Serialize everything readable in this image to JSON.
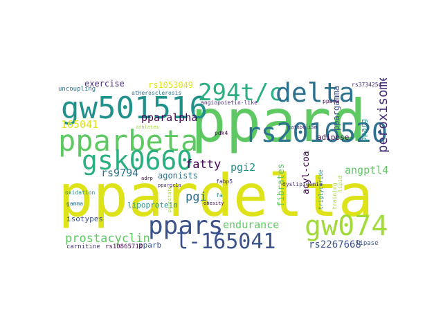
{
  "palette": {
    "yellow": "#dde318",
    "yellow_green": "#a2da37",
    "green": "#5ec962",
    "teal_green": "#2ab07f",
    "teal": "#21918c",
    "blue_teal": "#2c728e",
    "blue": "#3b528b",
    "indigo": "#472d7b",
    "purple": "#440154"
  },
  "words": {
    "ppardelta": "ppardelta",
    "ppard": "ppard",
    "gw501516": "gw501516",
    "pparbeta": "pparbeta",
    "294t_c": "294t/c",
    "delta": "delta",
    "rs2016520": "rs2016520",
    "gsk0660": "gsk0660",
    "gw0742": "gw0742",
    "ppars": "ppars",
    "l_165041": "l-165041",
    "peroxisome": "peroxisome",
    "fatty": "fatty",
    "prostacyclin": "prostacyclin",
    "endurance": "endurance",
    "angptl4": "angptl4",
    "rs2267668": "rs2267668",
    "rs9794": "rs9794",
    "pparalpha": "pparalpha",
    "165041": "165041",
    "pgi2": "pgi2",
    "pgi": "pgi",
    "agonists": "agonists",
    "exercise": "exercise",
    "rs1053049": "rs1053049",
    "acyl_coa": "acyl-coa",
    "fibrates": "fibrates",
    "adipose": "adipose",
    "ppargamma": "ppargamma",
    "pparg": "pparg",
    "isotypes": "isotypes",
    "lipoprotein": "lipoprotein",
    "pparb": "pparb",
    "carnitine": "carnitine",
    "rs10865710": "rs10865710",
    "lipase": "lipase",
    "uncoupling": "uncoupling",
    "atherosclerosis": "atherosclerosis",
    "angiopoietin_like": "angiopoietin-like",
    "athletes": "athletes",
    "pdk4": "pdk4",
    "fabp5": "fabp5",
    "dyslipidemia": "dyslipidemia",
    "triglyceride": "triglyceride",
    "training": "training",
    "lipid": "lipid",
    "ppara": "ppara",
    "rs3734254": "rs3734254",
    "oxidation": "oxidation",
    "gamma": "gamma",
    "obesity": "obesity",
    "palmitate": "palmitate",
    "adrp": "adrp",
    "ppargc1a": "ppargc1a",
    "fa": "fa",
    "catabolism": "catabolism"
  }
}
